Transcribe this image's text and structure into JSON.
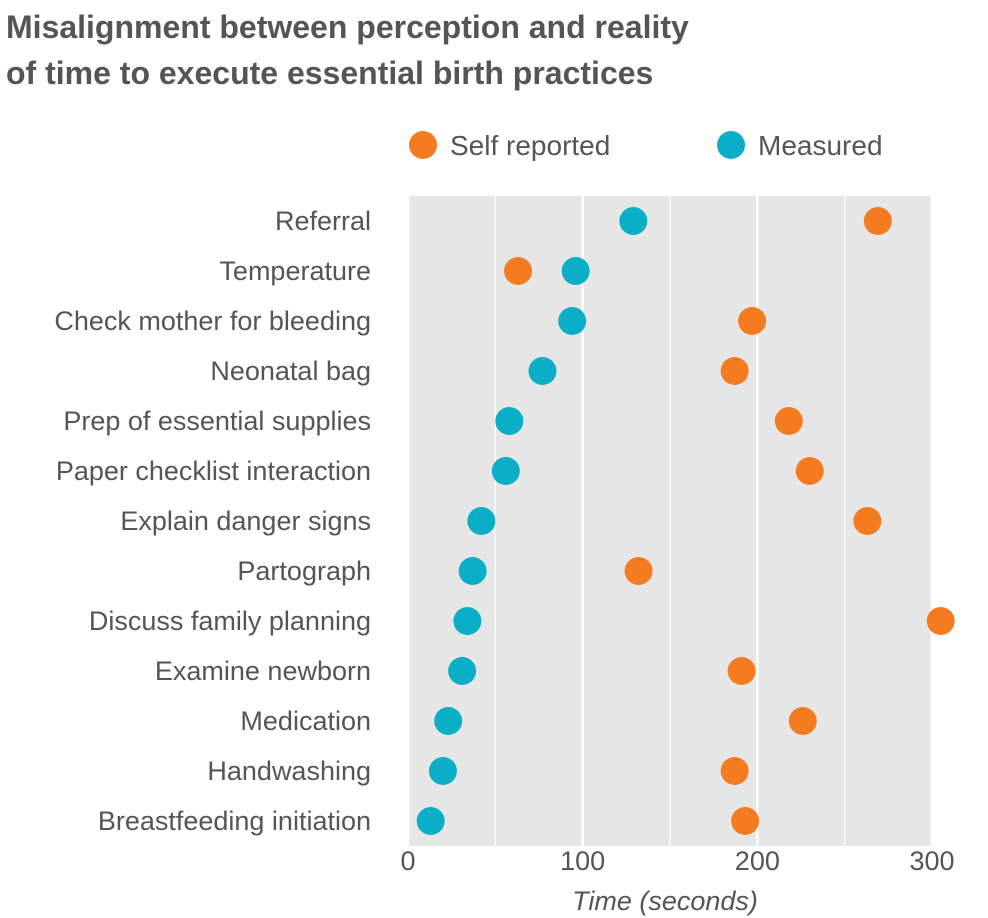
{
  "chart_data": {
    "type": "scatter",
    "title_lines": [
      "Misalignment between perception and reality",
      "of time to execute essential birth practices"
    ],
    "xlabel": "Time (seconds)",
    "ylabel": "",
    "xlim": [
      0,
      300
    ],
    "xticks": [
      0,
      100,
      200,
      300
    ],
    "grid": true,
    "legend_position": "top",
    "categories": [
      "Referral",
      "Temperature",
      "Check mother for bleeding",
      "Neonatal bag",
      "Prep of essential supplies",
      "Paper checklist interaction",
      "Explain danger signs",
      "Partograph",
      "Discuss family planning",
      "Examine newborn",
      "Medication",
      "Handwashing",
      "Breastfeeding initiation"
    ],
    "series": [
      {
        "name": "Self reported",
        "color": "#f47b20",
        "values": [
          269,
          63,
          197,
          187,
          218,
          230,
          263,
          132,
          305,
          191,
          226,
          187,
          193
        ]
      },
      {
        "name": "Measured",
        "color": "#0aaec7",
        "values": [
          129,
          96,
          94,
          77,
          58,
          56,
          42,
          37,
          34,
          31,
          23,
          20,
          13
        ]
      }
    ]
  },
  "colors": {
    "plot_background": "#e6e6e6",
    "gridline": "#ffffff",
    "text": "#555555"
  }
}
